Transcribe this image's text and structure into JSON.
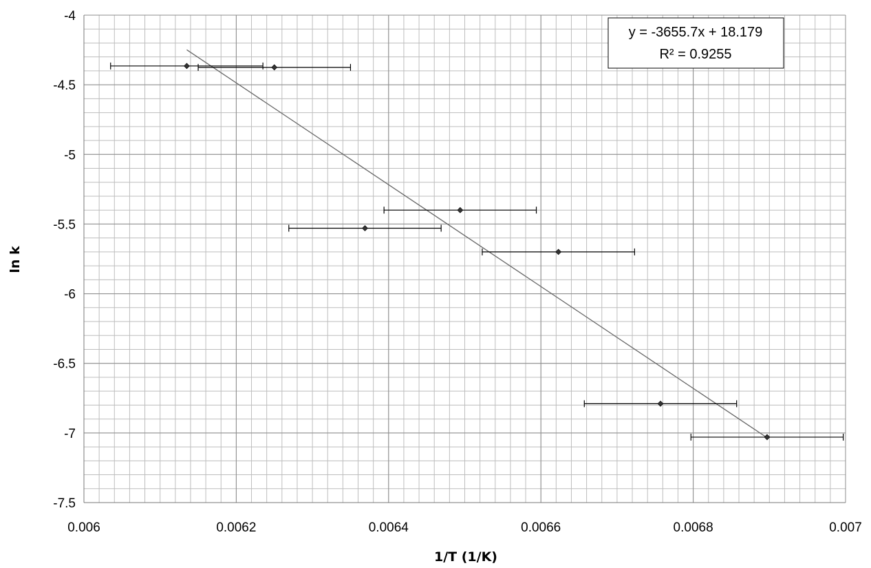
{
  "chart_data": {
    "type": "scatter",
    "xlabel": "1/T (1/K)",
    "ylabel": "ln k",
    "xlim": [
      0.006,
      0.007
    ],
    "ylim": [
      -7.5,
      -4
    ],
    "x_major_step": 0.0002,
    "x_minor_step": 2e-05,
    "y_major_step": 0.5,
    "y_minor_step": 0.1,
    "x_ticks": [
      "0.006",
      "0.0062",
      "0.0064",
      "0.0066",
      "0.0068",
      "0.007"
    ],
    "y_ticks": [
      "-4",
      "-4.5",
      "-5",
      "-5.5",
      "-6",
      "-6.5",
      "-7",
      "-7.5"
    ],
    "grid": true,
    "points": [
      {
        "x": 0.006135,
        "y": -4.365,
        "xerr": 0.0001
      },
      {
        "x": 0.00625,
        "y": -4.375,
        "xerr": 0.0001
      },
      {
        "x": 0.006369,
        "y": -5.53,
        "xerr": 0.0001
      },
      {
        "x": 0.006494,
        "y": -5.4,
        "xerr": 0.0001
      },
      {
        "x": 0.006623,
        "y": -5.7,
        "xerr": 0.0001
      },
      {
        "x": 0.006757,
        "y": -6.79,
        "xerr": 0.0001
      },
      {
        "x": 0.006897,
        "y": -7.03,
        "xerr": 0.0001
      }
    ],
    "trendline": {
      "slope": -3655.7,
      "intercept": 18.179,
      "x_range": [
        0.006135,
        0.006897
      ],
      "equation": "y = -3655.7x + 18.179",
      "r_squared": "R² = 0.9255"
    },
    "colors": {
      "grid": "#bdbdbd",
      "major_grid": "#8c8c8c",
      "marker": "#333333",
      "trendline": "#666666"
    }
  }
}
